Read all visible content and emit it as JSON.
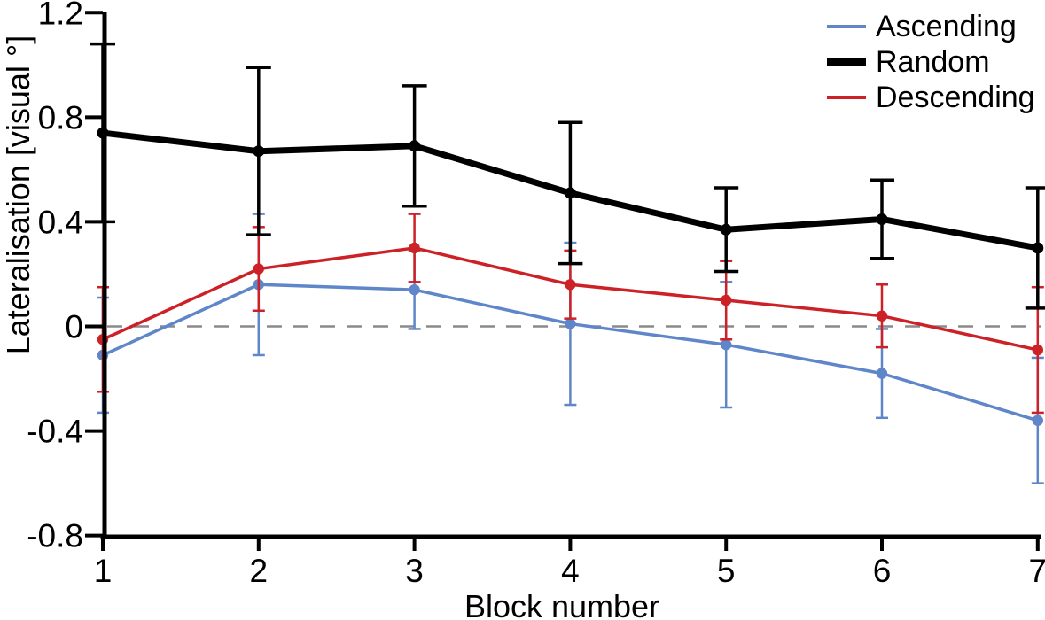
{
  "figure": {
    "background": "#ffffff",
    "text_color": "#000000"
  },
  "chart_data": {
    "type": "line",
    "title": "",
    "xlabel": "Block number",
    "ylabel": "Lateralisation [visual °]",
    "x": [
      1,
      2,
      3,
      4,
      5,
      6,
      7
    ],
    "x_tick_labels": [
      "1",
      "2",
      "3",
      "4",
      "5",
      "6",
      "7"
    ],
    "xlim": [
      1,
      7
    ],
    "ylim": [
      -0.8,
      1.2
    ],
    "y_ticks": [
      1.2,
      0.8,
      0.4,
      0,
      -0.4,
      -0.8
    ],
    "y_tick_labels": [
      "1.2",
      "0.8",
      "0.4",
      "0",
      "-0.4",
      "-0.8"
    ],
    "grid": false,
    "error_bars": true,
    "marker": "circle",
    "zero_line": {
      "value": 0,
      "style": "dashed",
      "color": "#8a8a8a"
    },
    "legend": {
      "position": "top-right",
      "entries": [
        "Ascending",
        "Random",
        "Descending"
      ]
    },
    "series": [
      {
        "name": "Ascending",
        "color": "#5e86c9",
        "line_width": 3.5,
        "values": [
          -0.11,
          0.16,
          0.14,
          0.01,
          -0.07,
          -0.18,
          -0.36
        ],
        "errors": [
          0.22,
          0.27,
          0.15,
          0.31,
          0.24,
          0.17,
          0.24
        ]
      },
      {
        "name": "Random",
        "color": "#000000",
        "line_width": 7,
        "values": [
          0.74,
          0.67,
          0.69,
          0.51,
          0.37,
          0.41,
          0.3
        ],
        "errors": [
          0.34,
          0.32,
          0.23,
          0.27,
          0.16,
          0.15,
          0.23
        ]
      },
      {
        "name": "Descending",
        "color": "#cc2127",
        "line_width": 3.5,
        "values": [
          -0.05,
          0.22,
          0.3,
          0.16,
          0.1,
          0.04,
          -0.09
        ],
        "errors": [
          0.2,
          0.16,
          0.13,
          0.13,
          0.15,
          0.12,
          0.24
        ]
      }
    ]
  }
}
